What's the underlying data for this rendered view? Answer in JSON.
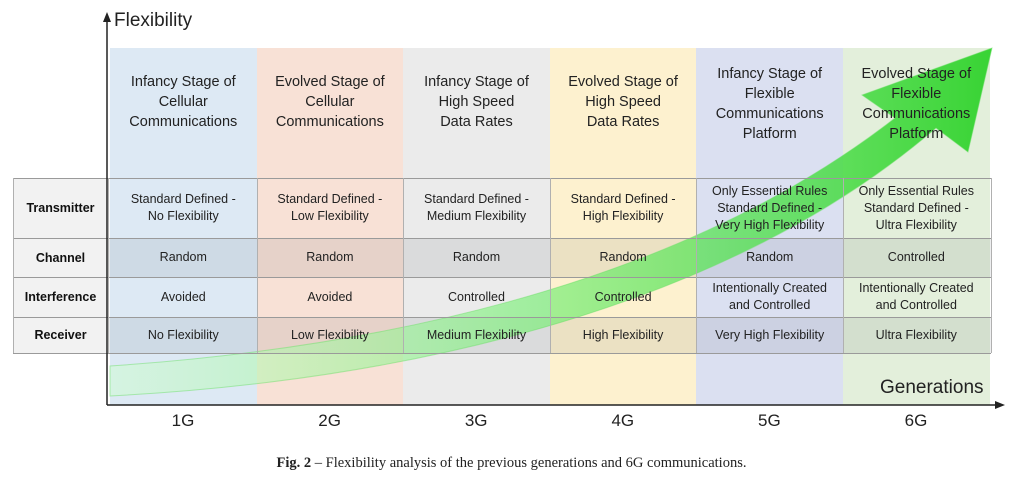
{
  "axes": {
    "y_title": "Flexibility",
    "x_title": "Generations"
  },
  "colors": {
    "col_1g": "#dde9f4",
    "col_2g": "#f8e1d6",
    "col_3g": "#ebebeb",
    "col_4g": "#fdf1cf",
    "col_5g": "#dbe0f1",
    "col_6g": "#e3efdb",
    "arrow": "#43d640",
    "row_label_bg": "#f2f2f2"
  },
  "generations": [
    {
      "label": "1G",
      "stage": "Infancy Stage of Cellular Communications",
      "stage_lines": [
        "Infancy Stage of",
        "Cellular",
        "Communications"
      ]
    },
    {
      "label": "2G",
      "stage": "Evolved Stage of Cellular Communications",
      "stage_lines": [
        "Evolved Stage of",
        "Cellular",
        "Communications"
      ]
    },
    {
      "label": "3G",
      "stage": "Infancy Stage of High Speed Data Rates",
      "stage_lines": [
        "Infancy Stage of",
        "High Speed",
        "Data Rates"
      ]
    },
    {
      "label": "4G",
      "stage": "Evolved Stage of High Speed Data Rates",
      "stage_lines": [
        "Evolved Stage of",
        "High Speed",
        "Data Rates"
      ]
    },
    {
      "label": "5G",
      "stage": "Infancy Stage of Flexible Communications Platform",
      "stage_lines": [
        "Infancy Stage of",
        "Flexible",
        "Communications",
        "Platform"
      ]
    },
    {
      "label": "6G",
      "stage": "Evolved Stage of Flexible Communications Platform",
      "stage_lines": [
        "Evolved Stage of",
        "Flexible",
        "Communications",
        "Platform"
      ]
    }
  ],
  "rows": [
    {
      "label": "Transmitter",
      "cells": [
        [
          "Standard Defined -",
          "No Flexibility"
        ],
        [
          "Standard Defined -",
          "Low Flexibility"
        ],
        [
          "Standard Defined -",
          "Medium Flexibility"
        ],
        [
          "Standard Defined -",
          "High Flexibility"
        ],
        [
          "Only Essential Rules",
          "Standard Defined -",
          "Very High Flexibility"
        ],
        [
          "Only Essential Rules",
          "Standard Defined -",
          "Ultra Flexibility"
        ]
      ]
    },
    {
      "label": "Channel",
      "cells": [
        [
          "Random"
        ],
        [
          "Random"
        ],
        [
          "Random"
        ],
        [
          "Random"
        ],
        [
          "Random"
        ],
        [
          "Controlled"
        ]
      ]
    },
    {
      "label": "Interference",
      "cells": [
        [
          "Avoided"
        ],
        [
          "Avoided"
        ],
        [
          "Controlled"
        ],
        [
          "Controlled"
        ],
        [
          "Intentionally Created",
          "and Controlled"
        ],
        [
          "Intentionally Created",
          "and Controlled"
        ]
      ]
    },
    {
      "label": "Receiver",
      "cells": [
        [
          "No Flexibility"
        ],
        [
          "Low Flexibility"
        ],
        [
          "Medium Flexibility"
        ],
        [
          "High Flexibility"
        ],
        [
          "Very High Flexibility"
        ],
        [
          "Ultra Flexibility"
        ]
      ]
    }
  ],
  "caption": {
    "prefix": "Fig. 2",
    "text": " – Flexibility analysis of the previous generations and 6G communications."
  }
}
